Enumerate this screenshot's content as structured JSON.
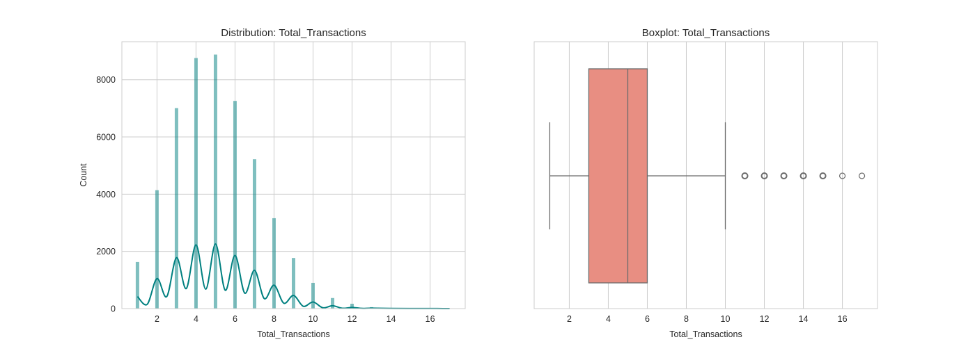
{
  "figure": {
    "background": "#ffffff",
    "grid_color": "#cccccc",
    "spine_color": "#cccccc"
  },
  "chart_data": [
    {
      "type": "bar",
      "subtype": "histogram_with_kde",
      "title": "Distribution: Total_Transactions",
      "xlabel": "Total_Transactions",
      "ylabel": "Count",
      "xlim": [
        0.2,
        17.8
      ],
      "ylim": [
        0,
        9330
      ],
      "xticks": [
        2,
        4,
        6,
        8,
        10,
        12,
        14,
        16
      ],
      "yticks": [
        0,
        2000,
        4000,
        6000,
        8000
      ],
      "grid": true,
      "bar_color": "#008080",
      "bar_alpha": 0.5,
      "kde_color": "#008080",
      "categories": [
        1,
        2,
        3,
        4,
        5,
        6,
        7,
        8,
        9,
        10,
        11,
        12,
        13,
        14,
        15,
        16,
        17
      ],
      "values": [
        1630,
        4140,
        7010,
        8760,
        8880,
        7260,
        5220,
        3160,
        1770,
        900,
        370,
        170,
        50,
        15,
        6,
        2,
        1
      ],
      "kde": {
        "x": [
          1,
          1.5,
          2,
          2.5,
          3,
          3.5,
          4,
          4.5,
          5,
          5.5,
          6,
          6.5,
          7,
          7.5,
          8,
          8.5,
          9,
          9.5,
          10,
          10.5,
          11,
          11.5,
          12,
          12.5,
          13,
          14,
          15,
          16,
          17
        ],
        "y": [
          420,
          150,
          1050,
          420,
          1780,
          700,
          2230,
          680,
          2260,
          640,
          1860,
          540,
          1340,
          350,
          820,
          190,
          460,
          80,
          230,
          30,
          100,
          12,
          40,
          8,
          15,
          5,
          3,
          2,
          1
        ]
      }
    },
    {
      "type": "box",
      "title": "Boxplot: Total_Transactions",
      "xlabel": "Total_Transactions",
      "ylabel": "",
      "xlim": [
        0.2,
        17.8
      ],
      "xticks": [
        2,
        4,
        6,
        8,
        10,
        12,
        14,
        16
      ],
      "grid": true,
      "box_color": "#e88e82",
      "line_color": "#6b6b6b",
      "whisker_low": 1,
      "q1": 3,
      "median": 5,
      "q3": 6,
      "whisker_high": 10,
      "outliers": [
        11,
        12,
        13,
        14,
        15,
        16,
        17
      ]
    }
  ]
}
